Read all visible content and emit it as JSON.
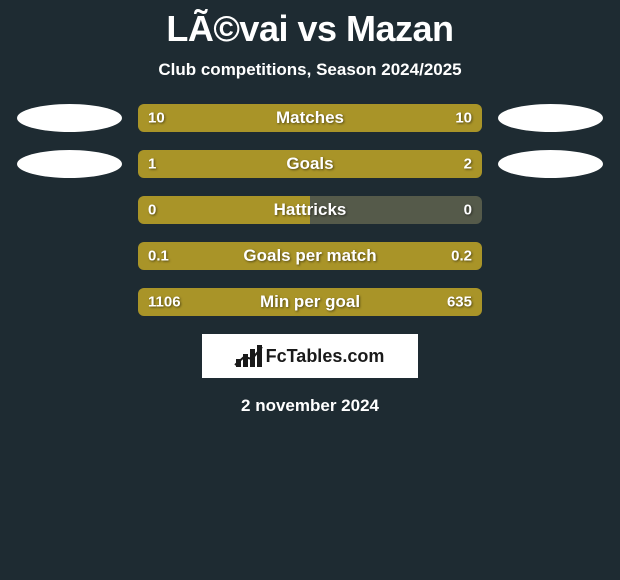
{
  "title": "LÃ©vai vs Mazan",
  "subtitle": "Club competitions, Season 2024/2025",
  "date": "2 november 2024",
  "logo_text": "FcTables.com",
  "colors": {
    "background": "#1e2b32",
    "bar_left": "#a99428",
    "bar_right": "#a99428",
    "bar_dim": "#555a4a",
    "ellipse": "#ffffff",
    "text": "#ffffff"
  },
  "rows": [
    {
      "label": "Matches",
      "left_value": "10",
      "right_value": "10",
      "left_share": 0.5,
      "right_share": 0.5,
      "left_color": "#a99428",
      "right_color": "#a99428",
      "show_ellipses": true
    },
    {
      "label": "Goals",
      "left_value": "1",
      "right_value": "2",
      "left_share": 0.31,
      "right_share": 0.69,
      "left_color": "#a99428",
      "right_color": "#a99428",
      "show_ellipses": true
    },
    {
      "label": "Hattricks",
      "left_value": "0",
      "right_value": "0",
      "left_share": 0.5,
      "right_share": 0.5,
      "left_color": "#a99428",
      "right_color": "#555a4a",
      "show_ellipses": false
    },
    {
      "label": "Goals per match",
      "left_value": "0.1",
      "right_value": "0.2",
      "left_share": 0.31,
      "right_share": 0.69,
      "left_color": "#a99428",
      "right_color": "#a99428",
      "show_ellipses": false
    },
    {
      "label": "Min per goal",
      "left_value": "1106",
      "right_value": "635",
      "left_share": 0.5,
      "right_share": 0.5,
      "left_color": "#a99428",
      "right_color": "#a99428",
      "show_ellipses": false
    }
  ]
}
